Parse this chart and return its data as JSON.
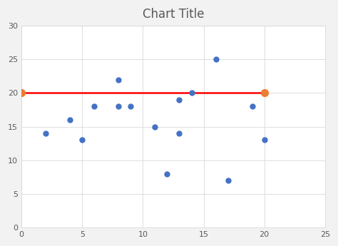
{
  "title": "Chart Title",
  "scatter_x": [
    2,
    4,
    5,
    6,
    8,
    8,
    9,
    11,
    12,
    13,
    13,
    14,
    16,
    17,
    19,
    20
  ],
  "scatter_y": [
    14,
    16,
    13,
    18,
    22,
    18,
    18,
    15,
    8,
    14,
    19,
    20,
    25,
    7,
    18,
    13
  ],
  "scatter_color": "#4472C4",
  "scatter_size": 25,
  "line_x": [
    0,
    20
  ],
  "line_y": [
    20,
    20
  ],
  "line_color": "#FF0000",
  "line_width": 1.8,
  "endpoint_color": "#ED7D31",
  "endpoint_size": 50,
  "xlim": [
    0,
    25
  ],
  "ylim": [
    0,
    30
  ],
  "xticks": [
    0,
    5,
    10,
    15,
    20,
    25
  ],
  "yticks": [
    0,
    5,
    10,
    15,
    20,
    25,
    30
  ],
  "grid_color": "#D9D9D9",
  "plot_bg_color": "#FFFFFF",
  "fig_bg_color": "#F2F2F2",
  "title_fontsize": 12,
  "tick_fontsize": 8,
  "title_color": "#595959",
  "tick_color": "#595959"
}
